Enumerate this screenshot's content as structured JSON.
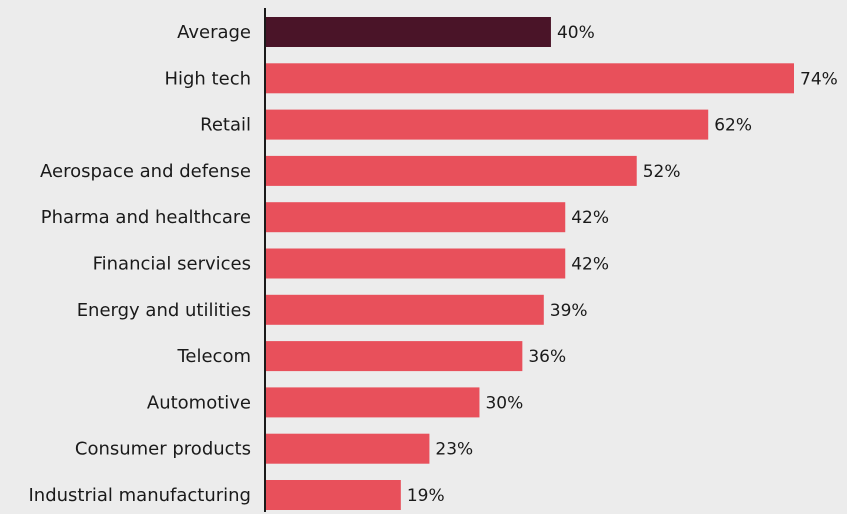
{
  "chart_data": {
    "type": "bar",
    "orientation": "horizontal",
    "title": "",
    "xlabel": "",
    "ylabel": "",
    "categories": [
      "Average",
      "High tech",
      "Retail",
      "Aerospace and defense",
      "Pharma and healthcare",
      "Financial services",
      "Energy and utilities",
      "Telecom",
      "Automotive",
      "Consumer products",
      "Industrial manufacturing"
    ],
    "values": [
      40,
      74,
      62,
      52,
      42,
      42,
      39,
      36,
      30,
      23,
      19
    ],
    "value_labels": [
      "40%",
      "74%",
      "62%",
      "52%",
      "42%",
      "42%",
      "39%",
      "36%",
      "30%",
      "23%",
      "19%"
    ],
    "unit": "%",
    "xlim": [
      0,
      74
    ],
    "grid": false,
    "legend": "none",
    "colors": {
      "highlight": "#4a1428",
      "bar": "#e8505b",
      "axis": "#1a1a1a",
      "background": "#ececec"
    },
    "highlight_index": 0
  }
}
